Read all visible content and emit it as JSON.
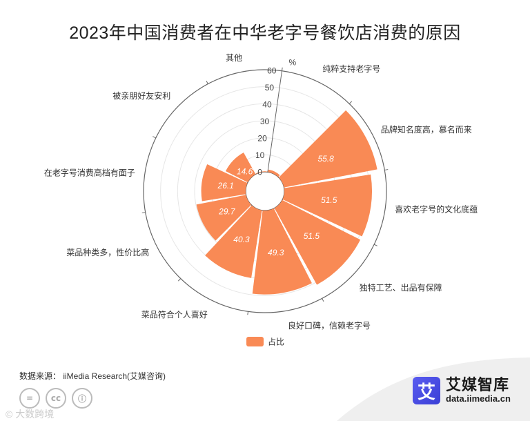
{
  "title": "2023年中国消费者在中华老字号餐饮店消费的原因",
  "source": "数据来源： iiMedia Research(艾媒咨询)",
  "brand": {
    "name": "艾媒智库",
    "url": "data.iimedia.cn",
    "logo_char": "艾",
    "logo_color": "#4b4de8"
  },
  "footer_icons": [
    "equals-icon",
    "cc-icon",
    "person-icon"
  ],
  "footer_icon_glyphs": [
    "=",
    "cc",
    "ⓘ"
  ],
  "watermark": "© 大数跨境",
  "chart_data": {
    "type": "polar-bar",
    "unit": "%",
    "radial_ticks": [
      0,
      10,
      20,
      30,
      40,
      50,
      60
    ],
    "rmax": 60,
    "color": "#f98a55",
    "legend": "占比",
    "legend_position": "bottom",
    "categories": [
      "纯粹支持老字号",
      "品牌知名度高，慕名而来",
      "喜欢老字号的文化底蕴",
      "独特工艺、出品有保障",
      "良好口碑，信赖老字号",
      "菜品符合个人喜好",
      "菜品种类多，性价比高",
      "在老字号消费高档有面子",
      "被亲朋好友安利",
      "其他"
    ],
    "values": [
      1.5,
      55.8,
      51.5,
      51.5,
      49.3,
      40.3,
      29.7,
      26.1,
      14.6,
      0.3
    ]
  }
}
